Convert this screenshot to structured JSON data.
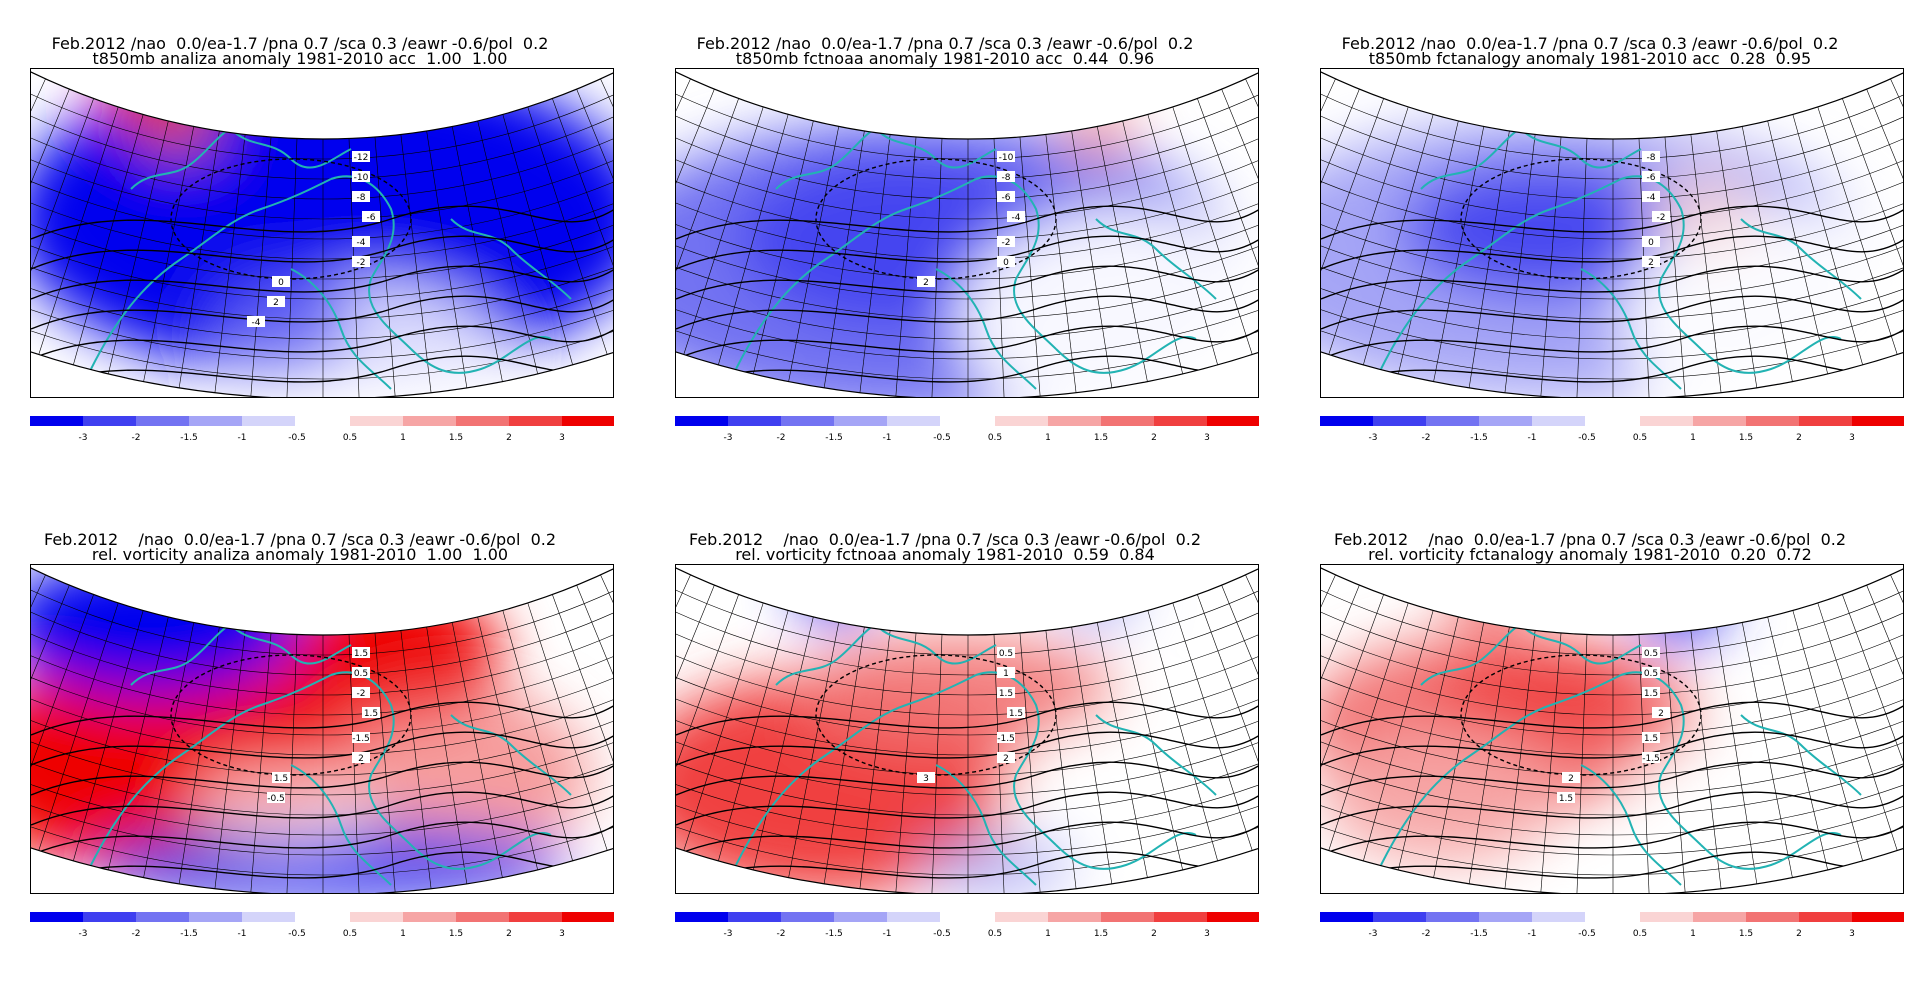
{
  "panels": [
    {
      "line1": "Feb.2012 /nao  0.0/ea-1.7 /pna 0.7 /sca 0.3 /eawr -0.6/pol  0.2",
      "line2": "t850mb analiza anomaly 1981-2010 acc  1.00  1.00",
      "variant": "t-analysis",
      "contour_labels": [
        "-12",
        "-10",
        "-8",
        "-6",
        "-4",
        "-2",
        "0",
        "2",
        "-4"
      ]
    },
    {
      "line1": "Feb.2012 /nao  0.0/ea-1.7 /pna 0.7 /sca 0.3 /eawr -0.6/pol  0.2",
      "line2": "t850mb fctnoaa anomaly 1981-2010 acc  0.44  0.96",
      "variant": "t-noaa",
      "contour_labels": [
        "-10",
        "-8",
        "-6",
        "-4",
        "-2",
        "0",
        "2"
      ]
    },
    {
      "line1": "Feb.2012 /nao  0.0/ea-1.7 /pna 0.7 /sca 0.3 /eawr -0.6/pol  0.2",
      "line2": "t850mb fctanalogy anomaly 1981-2010 acc  0.28  0.95",
      "variant": "t-analogy",
      "contour_labels": [
        "-8",
        "-6",
        "-4",
        "-2",
        "0",
        "2"
      ]
    },
    {
      "line1": "Feb.2012    /nao  0.0/ea-1.7 /pna 0.7 /sca 0.3 /eawr -0.6/pol  0.2",
      "line2": "rel. vorticity analiza anomaly 1981-2010  1.00  1.00",
      "variant": "v-analysis",
      "contour_labels": [
        "1.5",
        "0.5",
        "-2",
        "1.5",
        "-1.5",
        "2",
        "1.5",
        "-0.5"
      ]
    },
    {
      "line1": "Feb.2012    /nao  0.0/ea-1.7 /pna 0.7 /sca 0.3 /eawr -0.6/pol  0.2",
      "line2": "rel. vorticity fctnoaa anomaly 1981-2010  0.59  0.84",
      "variant": "v-noaa",
      "contour_labels": [
        "0.5",
        "1",
        "1.5",
        "1.5",
        "-1.5",
        "2",
        "3"
      ]
    },
    {
      "line1": "Feb.2012    /nao  0.0/ea-1.7 /pna 0.7 /sca 0.3 /eawr -0.6/pol  0.2",
      "line2": "rel. vorticity fctanalogy anomaly 1981-2010  0.20  0.72",
      "variant": "v-analogy",
      "contour_labels": [
        "0.5",
        "0.5",
        "1.5",
        "2",
        "1.5",
        "-1.5",
        "2",
        "1.5"
      ]
    }
  ],
  "colorbar": {
    "neg_labels": [
      "-3",
      "-2",
      "-1.5",
      "-1",
      "-0.5"
    ],
    "pos_labels": [
      "0.5",
      "1",
      "1.5",
      "2",
      "3"
    ],
    "neg_colors": [
      "#0000ee",
      "#3f3ff0",
      "#7373f2",
      "#a5a5f6",
      "#d4d4fa"
    ],
    "pos_colors": [
      "#fad4d4",
      "#f6a5a5",
      "#f27373",
      "#f03f3f",
      "#ee0000"
    ]
  },
  "colors": {
    "coast": "#22b3b3",
    "grid": "#000000"
  }
}
